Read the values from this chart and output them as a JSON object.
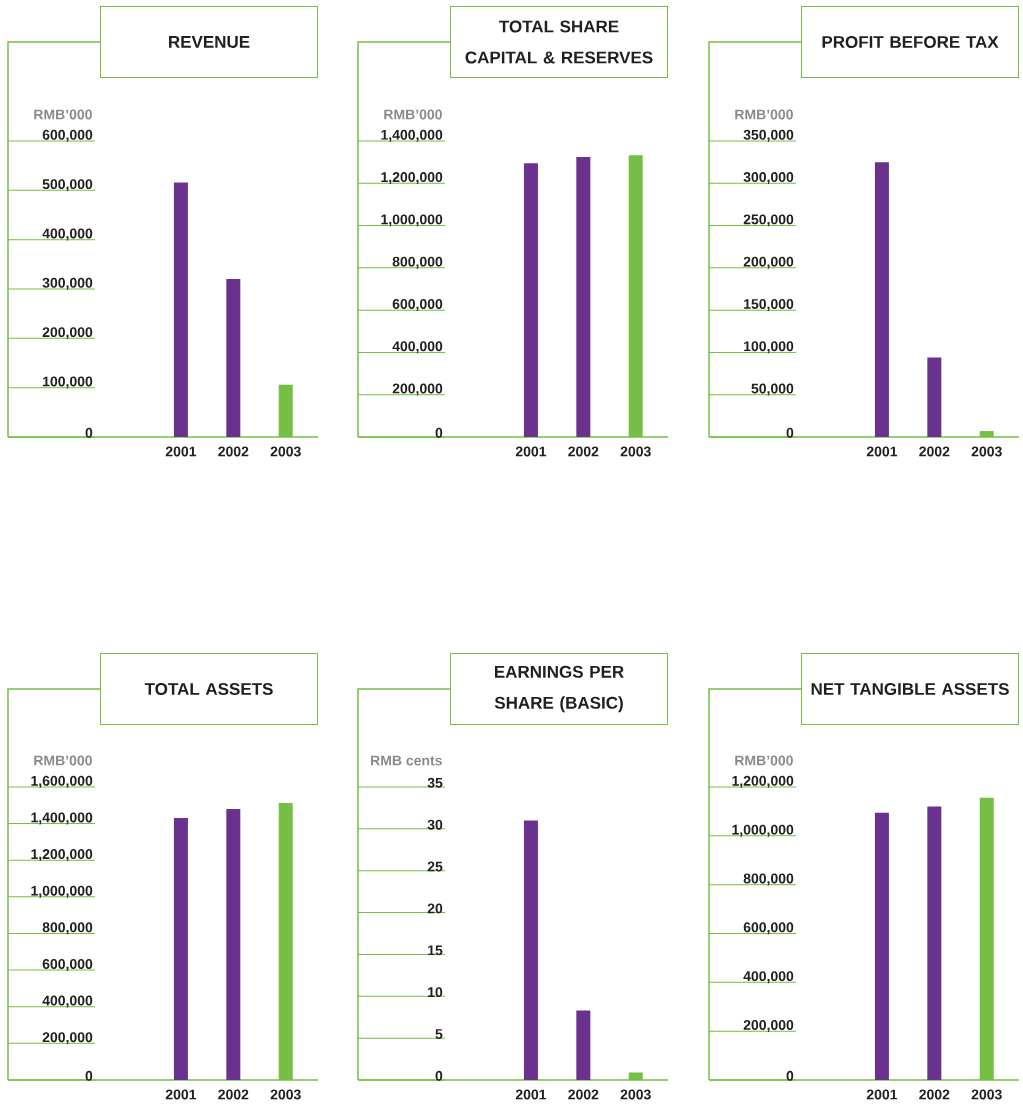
{
  "chart_data": [
    {
      "type": "bar",
      "title": "REVENUE",
      "ylabel": "RMB’000",
      "categories": [
        "2001",
        "2002",
        "2003"
      ],
      "values": [
        516000,
        320000,
        106000
      ],
      "colors": [
        "#6a318f",
        "#6a318f",
        "#74bf44"
      ],
      "ylim": [
        0,
        600000
      ],
      "yticks": [
        0,
        {
          "value": 100000,
          "label": "100,000"
        },
        {
          "value": 200000,
          "label": "200,000"
        },
        {
          "value": 300000,
          "label": "300,000"
        },
        {
          "value": 400000,
          "label": "400,000"
        },
        {
          "value": 500000,
          "label": "500,000"
        },
        {
          "value": 600000,
          "label": "600,000"
        }
      ]
    },
    {
      "type": "bar",
      "title": "TOTAL SHARE CAPITAL & RESERVES",
      "ylabel": "RMB’000",
      "categories": [
        "2001",
        "2002",
        "2003"
      ],
      "values": [
        1295000,
        1324000,
        1333000
      ],
      "colors": [
        "#6a318f",
        "#6a318f",
        "#74bf44"
      ],
      "ylim": [
        0,
        1400000
      ],
      "yticks": [
        0,
        {
          "value": 200000,
          "label": "200,000"
        },
        {
          "value": 400000,
          "label": "400,000"
        },
        {
          "value": 600000,
          "label": "600,000"
        },
        {
          "value": 800000,
          "label": "800,000"
        },
        {
          "value": 1000000,
          "label": "1,000,000"
        },
        {
          "value": 1200000,
          "label": "1,200,000"
        },
        {
          "value": 1400000,
          "label": "1,400,000"
        }
      ]
    },
    {
      "type": "bar",
      "title": "PROFIT BEFORE TAX",
      "ylabel": "RMB’000",
      "categories": [
        "2001",
        "2002",
        "2003"
      ],
      "values": [
        325000,
        94000,
        7000
      ],
      "colors": [
        "#6a318f",
        "#6a318f",
        "#74bf44"
      ],
      "ylim": [
        0,
        350000
      ],
      "yticks": [
        0,
        {
          "value": 50000,
          "label": "50,000"
        },
        {
          "value": 100000,
          "label": "100,000"
        },
        {
          "value": 150000,
          "label": "150,000"
        },
        {
          "value": 200000,
          "label": "200,000"
        },
        {
          "value": 250000,
          "label": "250,000"
        },
        {
          "value": 300000,
          "label": "300,000"
        },
        {
          "value": 350000,
          "label": "350,000"
        }
      ]
    },
    {
      "type": "bar",
      "title": "TOTAL ASSETS",
      "ylabel": "RMB’000",
      "categories": [
        "2001",
        "2002",
        "2003"
      ],
      "values": [
        1431000,
        1480000,
        1513000
      ],
      "colors": [
        "#6a318f",
        "#6a318f",
        "#74bf44"
      ],
      "ylim": [
        0,
        1600000
      ],
      "yticks": [
        0,
        {
          "value": 200000,
          "label": "200,000"
        },
        {
          "value": 400000,
          "label": "400,000"
        },
        {
          "value": 600000,
          "label": "600,000"
        },
        {
          "value": 800000,
          "label": "800,000"
        },
        {
          "value": 1000000,
          "label": "1,000,000"
        },
        {
          "value": 1200000,
          "label": "1,200,000"
        },
        {
          "value": 1400000,
          "label": "1,400,000"
        },
        {
          "value": 1600000,
          "label": "1,600,000"
        }
      ]
    },
    {
      "type": "bar",
      "title": "EARNINGS PER SHARE (BASIC)",
      "ylabel": "RMB cents",
      "categories": [
        "2001",
        "2002",
        "2003"
      ],
      "values": [
        31.0,
        8.3,
        0.9
      ],
      "colors": [
        "#6a318f",
        "#6a318f",
        "#74bf44"
      ],
      "ylim": [
        0,
        35
      ],
      "yticks": [
        0,
        5,
        10,
        15,
        20,
        25,
        30,
        35
      ]
    },
    {
      "type": "bar",
      "title": "NET TANGIBLE ASSETS",
      "ylabel": "RMB’000",
      "categories": [
        "2001",
        "2002",
        "2003"
      ],
      "values": [
        1095000,
        1120000,
        1156000
      ],
      "colors": [
        "#6a318f",
        "#6a318f",
        "#74bf44"
      ],
      "ylim": [
        0,
        1200000
      ],
      "yticks": [
        0,
        {
          "value": 200000,
          "label": "200,000"
        },
        {
          "value": 400000,
          "label": "400,000"
        },
        {
          "value": 600000,
          "label": "600,000"
        },
        {
          "value": 800000,
          "label": "800,000"
        },
        {
          "value": 1000000,
          "label": "1,000,000"
        },
        {
          "value": 1200000,
          "label": "1,200,000"
        }
      ]
    }
  ]
}
